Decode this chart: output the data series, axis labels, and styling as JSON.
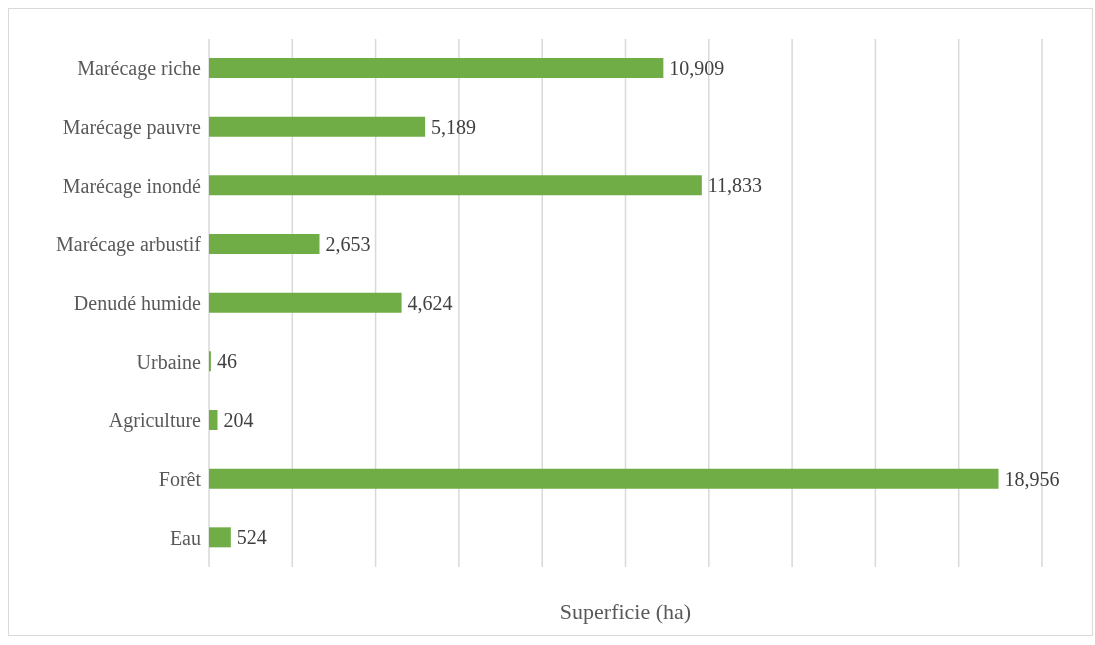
{
  "chart_data": {
    "type": "bar",
    "orientation": "horizontal",
    "xlabel": "Superficie (ha)",
    "categories": [
      "Marécage riche",
      "Marécage pauvre",
      "Marécage inondé",
      "Marécage arbustif",
      "Denudé humide",
      "Urbaine",
      "Agriculture",
      "Forêt",
      "Eau"
    ],
    "values": [
      10909,
      5189,
      11833,
      2653,
      4624,
      46,
      204,
      18956,
      524
    ],
    "value_labels": [
      "10,909",
      "5,189",
      "11,833",
      "2,653",
      "4,624",
      "46",
      "204",
      "18,956",
      "524"
    ],
    "color": "#70ad47",
    "xlim": [
      0,
      20000
    ],
    "xticks": [
      {
        "value": 0,
        "label": null
      },
      {
        "value": 2000,
        "label": null
      },
      {
        "value": 4000,
        "label": null
      },
      {
        "value": 6000,
        "label": null
      },
      {
        "value": 8000,
        "label": null
      },
      {
        "value": 10000,
        "label": null
      },
      {
        "value": 12000,
        "label": null
      },
      {
        "value": 14000,
        "label": null
      },
      {
        "value": 16000,
        "label": null
      },
      {
        "value": 18000,
        "label": null
      },
      {
        "value": 20000,
        "label": null
      }
    ],
    "tick_labels": false,
    "grid": "x"
  }
}
